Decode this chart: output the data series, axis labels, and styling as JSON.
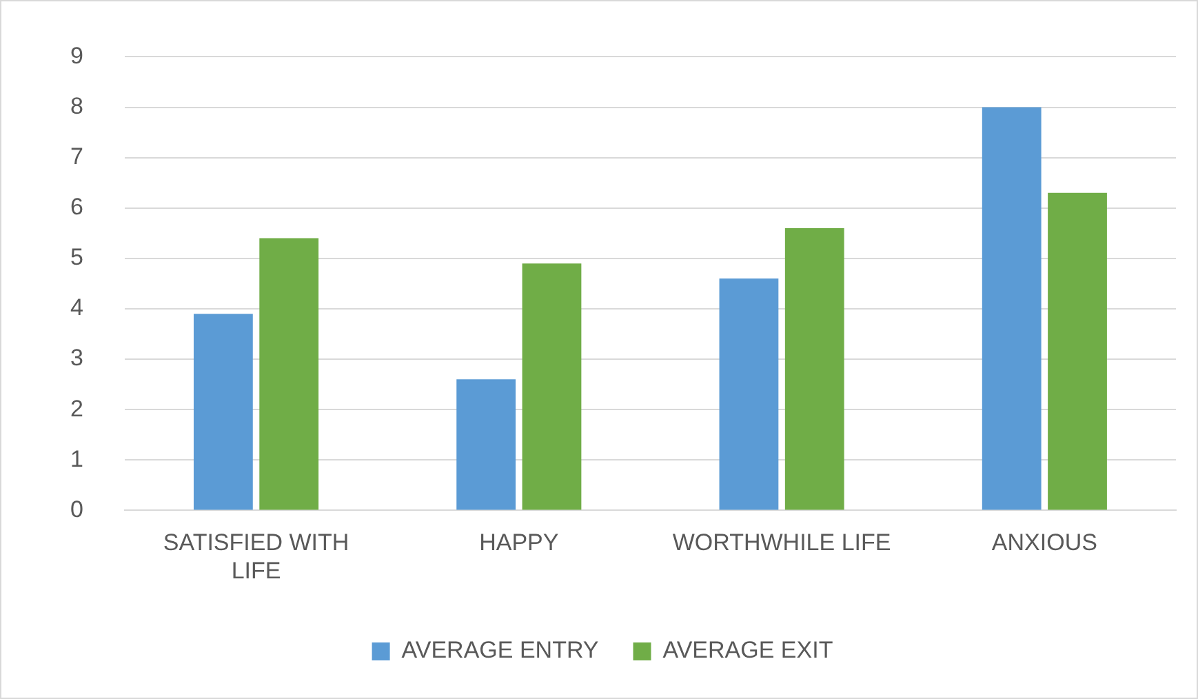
{
  "chart_data": {
    "type": "bar",
    "categories": [
      "SATISFIED WITH LIFE",
      "HAPPY",
      "WORTHWHILE LIFE",
      "ANXIOUS"
    ],
    "series": [
      {
        "name": "AVERAGE ENTRY",
        "color": "#5b9bd5",
        "values": [
          3.9,
          2.6,
          4.6,
          8.0
        ]
      },
      {
        "name": "AVERAGE EXIT",
        "color": "#70ad47",
        "values": [
          5.4,
          4.9,
          5.6,
          6.3
        ]
      }
    ],
    "ylim": [
      0,
      9
    ],
    "yticks": [
      0,
      1,
      2,
      3,
      4,
      5,
      6,
      7,
      8,
      9
    ],
    "grid": "y",
    "legend": "bottom"
  }
}
